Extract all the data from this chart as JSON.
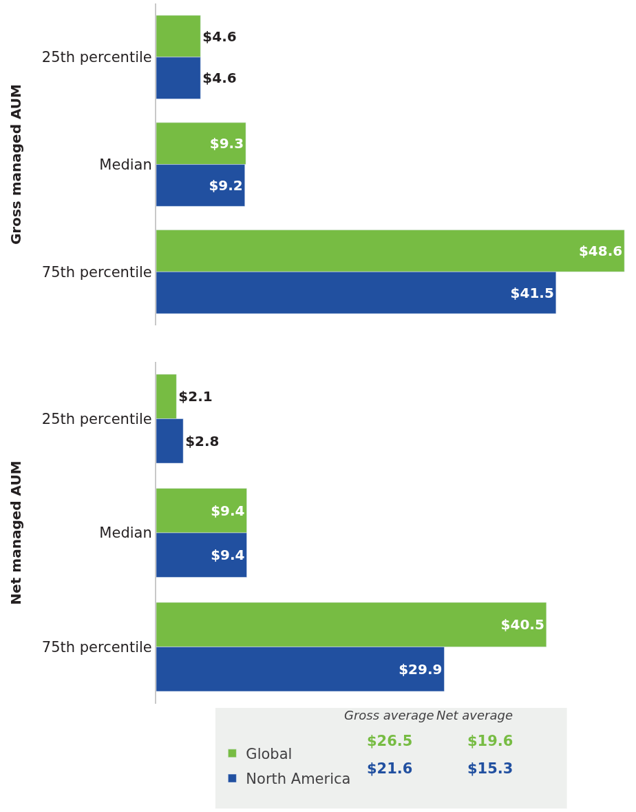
{
  "chart_data": [
    {
      "type": "bar",
      "orientation": "horizontal",
      "ylabel": "Gross managed AUM",
      "categories": [
        "25th percentile",
        "Median",
        "75th percentile"
      ],
      "legend": "bottom",
      "annotations": [
        "Gross average",
        "Net average",
        "$26.5",
        "$19.6",
        "$21.6",
        "$15.3"
      ],
      "series": [
        {
          "name": "Global",
          "color": "#77bc43",
          "values": [
            4.6,
            9.3,
            48.6
          ],
          "value_labels": [
            "$4.6",
            "$9.3",
            "$48.6"
          ]
        },
        {
          "name": "North America",
          "color": "#2150a0",
          "values": [
            4.6,
            9.2,
            41.5
          ],
          "value_labels": [
            "$4.6",
            "$9.2",
            "$41.5"
          ]
        }
      ]
    },
    {
      "type": "bar",
      "orientation": "horizontal",
      "ylabel": "Net managed AUM",
      "categories": [
        "25th percentile",
        "Median",
        "75th percentile"
      ],
      "series": [
        {
          "color": "#77bc43",
          "values": [
            2.1,
            9.4,
            40.5
          ],
          "value_labels": [
            "$2.1",
            "$9.4",
            "$40.5"
          ]
        },
        {
          "color": "#2150a0",
          "values": [
            2.8,
            9.4,
            29.9
          ],
          "value_labels": [
            "$2.8",
            "$9.4",
            "$29.9"
          ]
        }
      ]
    }
  ]
}
